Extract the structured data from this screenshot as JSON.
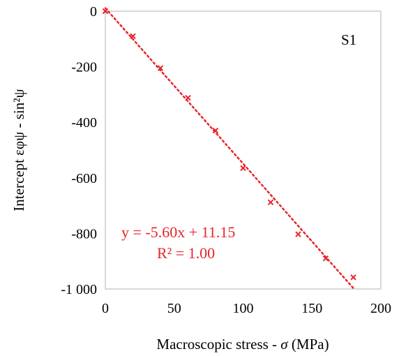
{
  "chart_data": {
    "type": "scatter",
    "xlabel_main": "Macroscopic stress - ",
    "xlabel_symbol": "σ",
    "xlabel_unit": " (MPa)",
    "ylabel": "Intercept εφψ - sin²ψ",
    "panel_label": "S1",
    "xlim": [
      0,
      200
    ],
    "ylim": [
      -1000,
      0
    ],
    "x_ticks": [
      0,
      50,
      100,
      150,
      200
    ],
    "y_ticks": [
      0,
      -200,
      -400,
      -600,
      -800,
      -1000
    ],
    "x_tick_labels": [
      "0",
      "50",
      "100",
      "150",
      "200"
    ],
    "y_tick_labels": [
      "0",
      "-200",
      "-400",
      "-600",
      "-800",
      "-1 000"
    ],
    "grid": false,
    "series": [
      {
        "marker": "x",
        "color": "#e8242a",
        "x": [
          0,
          20,
          40,
          60,
          80,
          100,
          120,
          140,
          160,
          180
        ],
        "y": [
          0,
          -90,
          -205,
          -312,
          -430,
          -565,
          -688,
          -803,
          -890,
          -958
        ]
      }
    ],
    "trendline": {
      "slope": -5.6,
      "intercept": 11.15,
      "x_range": [
        0,
        180
      ],
      "style": "dotted",
      "color": "#e8242a",
      "equation_label": "y = -5.60x + 11.15",
      "r2_label": "R² = 1.00"
    }
  }
}
